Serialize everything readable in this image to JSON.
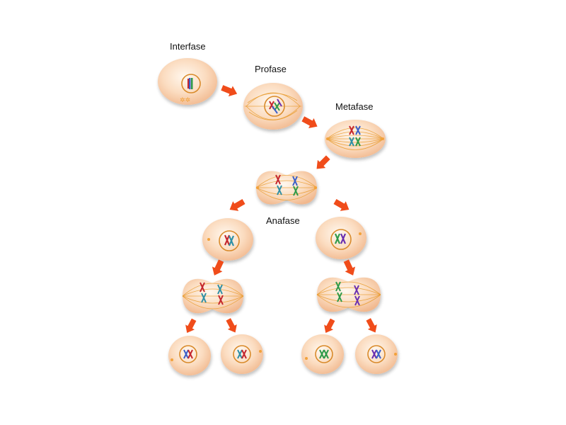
{
  "labels": {
    "interphase": "Interfase",
    "prophase": "Profase",
    "metaphase": "Metafase",
    "anaphase": "Anafase"
  },
  "colors": {
    "cytoplasm_light": "#fff6ec",
    "cytoplasm_dark": "#f6c9a2",
    "cytoplasm_edge": "#efb489",
    "nucleus": "#fbd3b0",
    "nucleus_ring": "#d98a2a",
    "centriole": "#f2a23a",
    "arrow": "#f04c1a",
    "chromosome_red": "#c4262e",
    "chromosome_teal": "#2f8fa6",
    "chromosome_green": "#2f9a4a",
    "chromosome_blue": "#3a5fc8",
    "chromosome_purple": "#6a2fb0"
  }
}
